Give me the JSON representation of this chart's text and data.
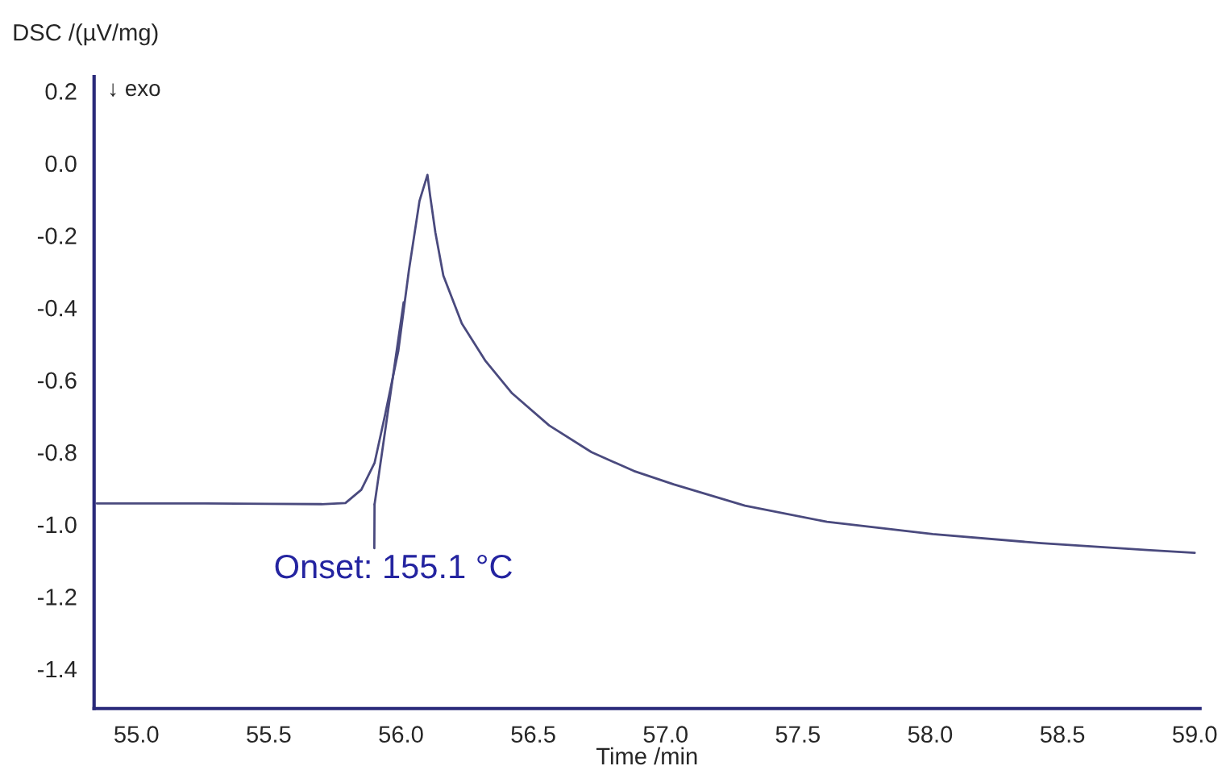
{
  "chart_data": {
    "type": "line",
    "xlabel": "Time /min",
    "ylabel": "DSC /(µV/mg)",
    "xlim": [
      54.84,
      59.02
    ],
    "ylim": [
      -1.51,
      0.24
    ],
    "xticks": [
      {
        "value": 55.0,
        "label": "55.0"
      },
      {
        "value": 55.5,
        "label": "55.5"
      },
      {
        "value": 56.0,
        "label": "56.0"
      },
      {
        "value": 56.5,
        "label": "56.5"
      },
      {
        "value": 57.0,
        "label": "57.0"
      },
      {
        "value": 57.5,
        "label": "57.5"
      },
      {
        "value": 58.0,
        "label": "58.0"
      },
      {
        "value": 58.5,
        "label": "58.5"
      },
      {
        "value": 59.0,
        "label": "59.0"
      }
    ],
    "yticks": [
      {
        "value": 0.2,
        "label": "0.2"
      },
      {
        "value": 0.0,
        "label": "0.0"
      },
      {
        "value": -0.2,
        "label": "-0.2"
      },
      {
        "value": -0.4,
        "label": "-0.4"
      },
      {
        "value": -0.6,
        "label": "-0.6"
      },
      {
        "value": -0.8,
        "label": "-0.8"
      },
      {
        "value": -1.0,
        "label": "-1.0"
      },
      {
        "value": -1.2,
        "label": "-1.2"
      },
      {
        "value": -1.4,
        "label": "-1.4"
      }
    ],
    "grid": false,
    "legend": false,
    "marker": "none",
    "line_style": "solid",
    "series": [
      {
        "color": "#4a4a7e",
        "x": [
          54.85,
          55.2,
          55.5,
          55.7,
          55.79,
          55.85,
          55.9,
          55.94,
          55.99,
          56.03,
          56.07,
          56.1,
          56.11,
          56.13,
          56.16,
          56.23,
          56.32,
          56.42,
          56.56,
          56.72,
          56.88,
          57.03,
          57.3,
          57.61,
          58.01,
          58.42,
          58.82,
          59.0
        ],
        "values": [
          -0.942,
          -0.942,
          -0.943,
          -0.944,
          -0.941,
          -0.904,
          -0.83,
          -0.696,
          -0.519,
          -0.296,
          -0.104,
          -0.032,
          -0.089,
          -0.192,
          -0.311,
          -0.444,
          -0.548,
          -0.637,
          -0.726,
          -0.8,
          -0.852,
          -0.889,
          -0.948,
          -0.993,
          -1.027,
          -1.052,
          -1.071,
          -1.079
        ]
      },
      {
        "color": "#4a4a7e",
        "x": [
          55.9,
          56.01
        ],
        "values": [
          -0.945,
          -0.385
        ]
      }
    ],
    "annotations": [
      "↓ exo",
      {
        "text": "Onset: 155.1 °C",
        "x": 55.9,
        "y": -0.945
      }
    ]
  }
}
